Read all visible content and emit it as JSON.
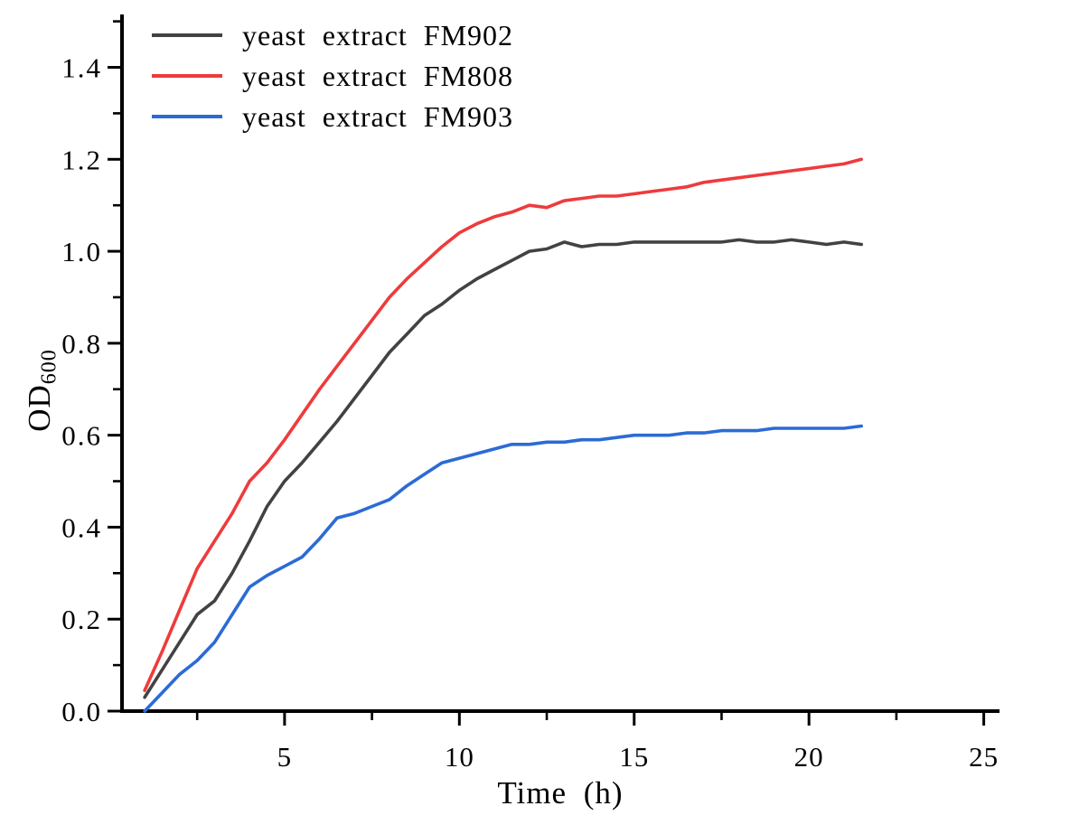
{
  "figure": {
    "background": "#ffffff",
    "ylabel_main": "OD",
    "ylabel_sub": "600"
  },
  "chart_data": {
    "type": "line",
    "title": "",
    "xlabel": "Time (h)",
    "ylabel": "OD600",
    "legend_position": "upper-left",
    "grid": false,
    "axis_color": "#000000",
    "xlim": [
      0.35,
      25.45
    ],
    "ylim": [
      0,
      1.515
    ],
    "x_ticks_major": [
      5,
      10,
      15,
      20,
      25
    ],
    "x_ticks_minor": [
      2.5,
      7.5,
      12.5,
      17.5,
      22.5
    ],
    "y_ticks_major": [
      0.0,
      0.2,
      0.4,
      0.6,
      0.8,
      1.0,
      1.2,
      1.4
    ],
    "y_ticks_minor": [
      0.1,
      0.3,
      0.5,
      0.7,
      0.9,
      1.1,
      1.3,
      1.5
    ],
    "x": [
      1,
      1.5,
      2,
      2.5,
      3,
      3.5,
      4,
      4.5,
      5,
      5.5,
      6,
      6.5,
      7,
      7.5,
      8,
      8.5,
      9,
      9.5,
      10,
      10.5,
      11,
      11.5,
      12,
      12.5,
      13,
      13.5,
      14,
      14.5,
      15,
      15.5,
      16,
      16.5,
      17,
      17.5,
      18,
      18.5,
      19,
      19.5,
      20,
      20.5,
      21,
      21.5
    ],
    "series": [
      {
        "name": "yeast extract FM902",
        "color": "#424242",
        "values": [
          0.03,
          0.09,
          0.15,
          0.21,
          0.24,
          0.3,
          0.37,
          0.445,
          0.5,
          0.54,
          0.585,
          0.63,
          0.68,
          0.73,
          0.78,
          0.82,
          0.86,
          0.885,
          0.915,
          0.94,
          0.96,
          0.98,
          1.0,
          1.005,
          1.02,
          1.01,
          1.015,
          1.015,
          1.02,
          1.02,
          1.02,
          1.02,
          1.02,
          1.02,
          1.025,
          1.02,
          1.02,
          1.025,
          1.02,
          1.015,
          1.02,
          1.015
        ]
      },
      {
        "name": "yeast extract FM808",
        "color": "#ee3b3c",
        "values": [
          0.045,
          0.13,
          0.22,
          0.31,
          0.37,
          0.43,
          0.5,
          0.54,
          0.59,
          0.645,
          0.7,
          0.75,
          0.8,
          0.85,
          0.9,
          0.94,
          0.975,
          1.01,
          1.04,
          1.06,
          1.075,
          1.085,
          1.1,
          1.095,
          1.11,
          1.115,
          1.12,
          1.12,
          1.125,
          1.13,
          1.135,
          1.14,
          1.15,
          1.155,
          1.16,
          1.165,
          1.17,
          1.175,
          1.18,
          1.185,
          1.19,
          1.2
        ]
      },
      {
        "name": "yeast extract FM903",
        "color": "#2b6bd5",
        "values": [
          0.0,
          0.04,
          0.08,
          0.11,
          0.15,
          0.21,
          0.27,
          0.295,
          0.315,
          0.335,
          0.375,
          0.42,
          0.43,
          0.445,
          0.46,
          0.49,
          0.515,
          0.54,
          0.55,
          0.56,
          0.57,
          0.58,
          0.58,
          0.585,
          0.585,
          0.59,
          0.59,
          0.595,
          0.6,
          0.6,
          0.6,
          0.605,
          0.605,
          0.61,
          0.61,
          0.61,
          0.615,
          0.615,
          0.615,
          0.615,
          0.615,
          0.62
        ]
      }
    ]
  }
}
